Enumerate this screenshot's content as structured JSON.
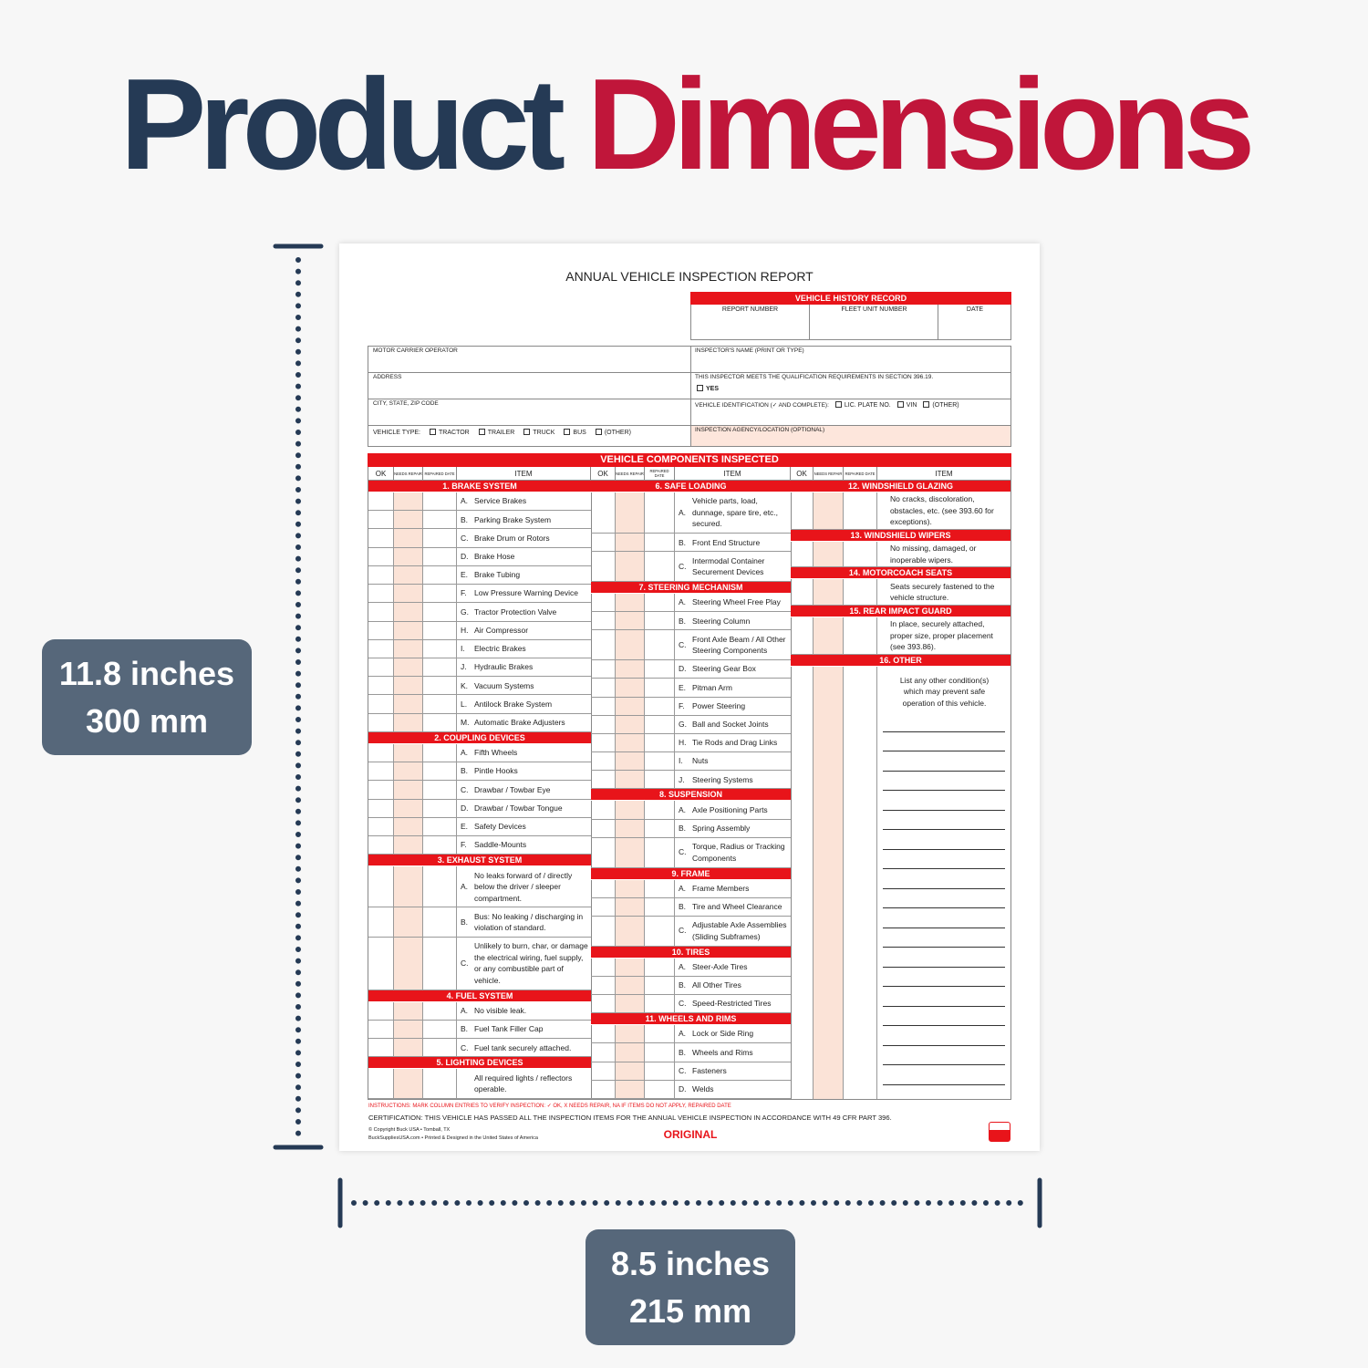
{
  "headline": {
    "first": "Product",
    "second": "Dimensions"
  },
  "height_badge": {
    "imperial": "11.8 inches",
    "metric": "300 mm"
  },
  "width_badge": {
    "imperial": "8.5 inches",
    "metric": "215 mm"
  },
  "form": {
    "title": "ANNUAL VEHICLE INSPECTION REPORT",
    "history": {
      "header": "VEHICLE HISTORY RECORD",
      "columns": [
        "REPORT NUMBER",
        "FLEET UNIT NUMBER",
        "DATE"
      ]
    },
    "left_fields": [
      "MOTOR CARRIER OPERATOR",
      "ADDRESS",
      "CITY, STATE, ZIP CODE"
    ],
    "vehicle_type": {
      "label": "VEHICLE TYPE:",
      "options": [
        "TRACTOR",
        "TRAILER",
        "TRUCK",
        "BUS",
        "(OTHER)"
      ]
    },
    "inspector_name": "INSPECTOR'S NAME (PRINT OR TYPE)",
    "qualification": {
      "label": "THIS INSPECTOR MEETS THE QUALIFICATION REQUIREMENTS IN SECTION 396.19.",
      "option": "YES"
    },
    "vehicle_id": {
      "label": "VEHICLE IDENTIFICATION (✓ AND COMPLETE):",
      "options": [
        "LIC. PLATE NO.",
        "VIN",
        "(OTHER)"
      ]
    },
    "agency": "INSPECTION AGENCY/LOCATION (OPTIONAL)",
    "components": {
      "header": "VEHICLE COMPONENTS INSPECTED",
      "column_heads": {
        "ok": "OK",
        "needs_repair": "NEEDS REPAIR",
        "repaired_date": "REPAIRED DATE",
        "item": "ITEM"
      },
      "columns": [
        [
          {
            "title": "1. BRAKE SYSTEM",
            "items": [
              {
                "letter": "A.",
                "text": "Service Brakes"
              },
              {
                "letter": "B.",
                "text": "Parking Brake System"
              },
              {
                "letter": "C.",
                "text": "Brake Drum or Rotors"
              },
              {
                "letter": "D.",
                "text": "Brake Hose"
              },
              {
                "letter": "E.",
                "text": "Brake Tubing"
              },
              {
                "letter": "F.",
                "text": "Low Pressure Warning Device"
              },
              {
                "letter": "G.",
                "text": "Tractor Protection Valve"
              },
              {
                "letter": "H.",
                "text": "Air Compressor"
              },
              {
                "letter": "I.",
                "text": "Electric Brakes"
              },
              {
                "letter": "J.",
                "text": "Hydraulic Brakes"
              },
              {
                "letter": "K.",
                "text": "Vacuum Systems"
              },
              {
                "letter": "L.",
                "text": "Antilock Brake System"
              },
              {
                "letter": "M.",
                "text": "Automatic Brake Adjusters"
              }
            ]
          },
          {
            "title": "2. COUPLING DEVICES",
            "items": [
              {
                "letter": "A.",
                "text": "Fifth Wheels"
              },
              {
                "letter": "B.",
                "text": "Pintle Hooks"
              },
              {
                "letter": "C.",
                "text": "Drawbar / Towbar Eye"
              },
              {
                "letter": "D.",
                "text": "Drawbar / Towbar Tongue"
              },
              {
                "letter": "E.",
                "text": "Safety Devices"
              },
              {
                "letter": "F.",
                "text": "Saddle-Mounts"
              }
            ]
          },
          {
            "title": "3. EXHAUST SYSTEM",
            "items": [
              {
                "letter": "A.",
                "text": "No leaks forward of / directly below the driver / sleeper compartment."
              },
              {
                "letter": "B.",
                "text": "Bus: No leaking / discharging in violation of standard."
              },
              {
                "letter": "C.",
                "text": "Unlikely to burn, char, or damage the electrical wiring, fuel supply, or any combustible part of vehicle."
              }
            ]
          },
          {
            "title": "4. FUEL SYSTEM",
            "items": [
              {
                "letter": "A.",
                "text": "No visible leak."
              },
              {
                "letter": "B.",
                "text": "Fuel Tank Filler Cap"
              },
              {
                "letter": "C.",
                "text": "Fuel tank securely attached."
              }
            ]
          },
          {
            "title": "5. LIGHTING DEVICES",
            "items": [
              {
                "text": "All required lights / reflectors operable."
              }
            ]
          }
        ],
        [
          {
            "title": "6. SAFE LOADING",
            "items": [
              {
                "letter": "A.",
                "text": "Vehicle parts, load, dunnage, spare tire, etc., secured."
              },
              {
                "letter": "B.",
                "text": "Front End Structure"
              },
              {
                "letter": "C.",
                "text": "Intermodal Container Securement Devices"
              }
            ]
          },
          {
            "title": "7. STEERING MECHANISM",
            "items": [
              {
                "letter": "A.",
                "text": "Steering Wheel Free Play"
              },
              {
                "letter": "B.",
                "text": "Steering Column"
              },
              {
                "letter": "C.",
                "text": "Front Axle Beam / All Other Steering Components"
              },
              {
                "letter": "D.",
                "text": "Steering Gear Box"
              },
              {
                "letter": "E.",
                "text": "Pitman Arm"
              },
              {
                "letter": "F.",
                "text": "Power Steering"
              },
              {
                "letter": "G.",
                "text": "Ball and Socket Joints"
              },
              {
                "letter": "H.",
                "text": "Tie Rods and Drag Links"
              },
              {
                "letter": "I.",
                "text": "Nuts"
              },
              {
                "letter": "J.",
                "text": "Steering Systems"
              }
            ]
          },
          {
            "title": "8. SUSPENSION",
            "items": [
              {
                "letter": "A.",
                "text": "Axle Positioning Parts"
              },
              {
                "letter": "B.",
                "text": "Spring Assembly"
              },
              {
                "letter": "C.",
                "text": "Torque, Radius or Tracking Components"
              }
            ]
          },
          {
            "title": "9. FRAME",
            "items": [
              {
                "letter": "A.",
                "text": "Frame Members"
              },
              {
                "letter": "B.",
                "text": "Tire and Wheel Clearance"
              },
              {
                "letter": "C.",
                "text": "Adjustable Axle Assemblies (Sliding Subframes)"
              }
            ]
          },
          {
            "title": "10. TIRES",
            "items": [
              {
                "letter": "A.",
                "text": "Steer-Axle Tires"
              },
              {
                "letter": "B.",
                "text": "All Other Tires"
              },
              {
                "letter": "C.",
                "text": "Speed-Restricted Tires"
              }
            ]
          },
          {
            "title": "11. WHEELS AND RIMS",
            "items": [
              {
                "letter": "A.",
                "text": "Lock or Side Ring"
              },
              {
                "letter": "B.",
                "text": "Wheels and Rims"
              },
              {
                "letter": "C.",
                "text": "Fasteners"
              },
              {
                "letter": "D.",
                "text": "Welds"
              }
            ]
          }
        ],
        [
          {
            "title": "12. WINDSHIELD GLAZING",
            "items": [
              {
                "text": "No cracks, discoloration, obstacles, etc. (see 393.60 for exceptions)."
              }
            ]
          },
          {
            "title": "13. WINDSHIELD WIPERS",
            "items": [
              {
                "text": "No missing, damaged, or inoperable wipers."
              }
            ]
          },
          {
            "title": "14. MOTORCOACH SEATS",
            "items": [
              {
                "text": "Seats securely fastened to the vehicle structure."
              }
            ]
          },
          {
            "title": "15. REAR IMPACT GUARD",
            "items": [
              {
                "text": "In place, securely attached, proper size, proper placement (see 393.86)."
              }
            ]
          },
          {
            "title": "16. OTHER",
            "items": [
              {
                "text": "List any other condition(s) which may prevent safe operation of this vehicle."
              }
            ]
          }
        ]
      ]
    },
    "instructions": "INSTRUCTIONS: MARK COLUMN ENTRIES TO VERIFY INSPECTION: ✓ OK, X NEEDS REPAIR, NA IF ITEMS DO NOT APPLY, REPAIRED DATE",
    "certification": "CERTIFICATION: THIS VEHICLE HAS PASSED ALL THE INSPECTION ITEMS FOR THE ANNUAL VEHICLE INSPECTION IN ACCORDANCE WITH 49 CFR PART 396.",
    "copyright": [
      "© Copyright Buck USA • Tomball, TX",
      "BuckSuppliesUSA.com • Printed & Designed in the United States of America"
    ],
    "copy_label": "ORIGINAL"
  }
}
